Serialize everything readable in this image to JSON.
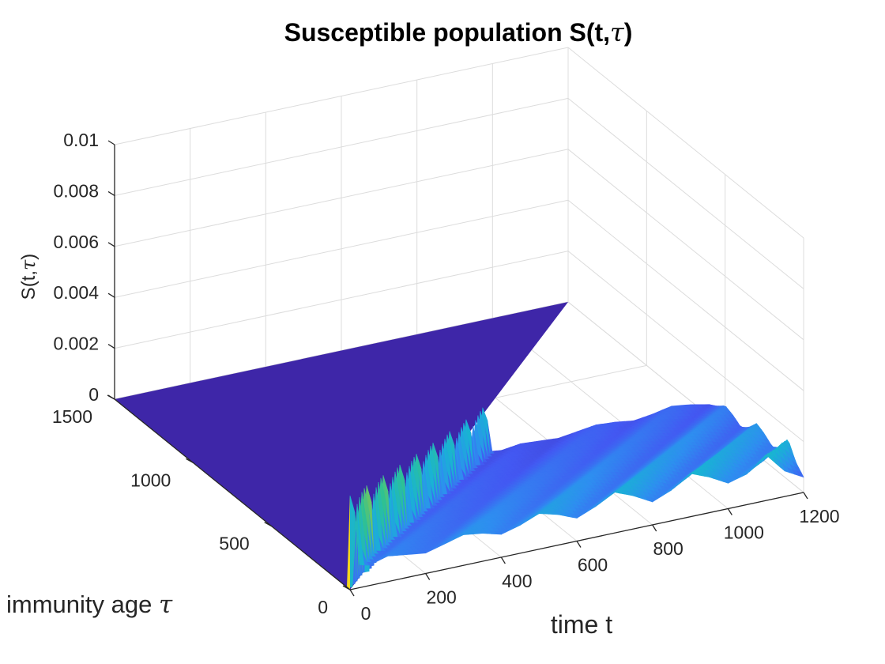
{
  "chart_data": {
    "type": "surface",
    "title_main": "Susceptible population S(t,",
    "title_greek": "τ",
    "title_close": ")",
    "xlabel": "time t",
    "ylabel_text": "immunity age ",
    "ylabel_greek": "τ",
    "zlabel_main": "S(t,",
    "zlabel_greek": "τ",
    "zlabel_close": ")",
    "xlim": [
      0,
      1200
    ],
    "ylim": [
      0,
      1500
    ],
    "zlim": [
      0,
      0.01
    ],
    "xticks": [
      0,
      200,
      400,
      600,
      800,
      1000,
      1200
    ],
    "xtick_labels": [
      "0",
      "200",
      "400",
      "600",
      "800",
      "1000",
      "1200"
    ],
    "yticks": [
      0,
      500,
      1000,
      1500
    ],
    "ytick_labels": [
      "0",
      "500",
      "1000",
      "1500"
    ],
    "zticks": [
      0,
      0.002,
      0.004,
      0.006,
      0.008,
      0.01
    ],
    "ztick_labels": [
      "0",
      "0.002",
      "0.004",
      "0.006",
      "0.008",
      "0.01"
    ],
    "grid": true,
    "colormap": [
      "#3e26a8",
      "#4358f2",
      "#2e8ef0",
      "#19b3d4",
      "#2ec193",
      "#91c84a",
      "#ebb92e",
      "#f9fb0e"
    ],
    "surface": {
      "initial_peak_at_t0": 0.0037,
      "t_grid": [
        0,
        25,
        50,
        75,
        100,
        150,
        200,
        250,
        300,
        350,
        400,
        450,
        500,
        550,
        600,
        650,
        700,
        750,
        800,
        850,
        900,
        950,
        1000,
        1050,
        1100,
        1150,
        1200
      ],
      "tau_zero_profile": [
        0.0037,
        0.0009,
        0.0008,
        0.0009,
        0.001,
        0.0009,
        0.0008,
        0.001,
        0.0012,
        0.0011,
        0.0009,
        0.0011,
        0.0014,
        0.0012,
        0.0009,
        0.0012,
        0.0016,
        0.0013,
        0.0009,
        0.0012,
        0.0017,
        0.0014,
        0.001,
        0.0012,
        0.0018,
        0.001,
        0.0006
      ],
      "ridge_tau_range": [
        0,
        600
      ],
      "description_values": "wave travels along t = tau diagonal; oscillation period about 200"
    }
  }
}
